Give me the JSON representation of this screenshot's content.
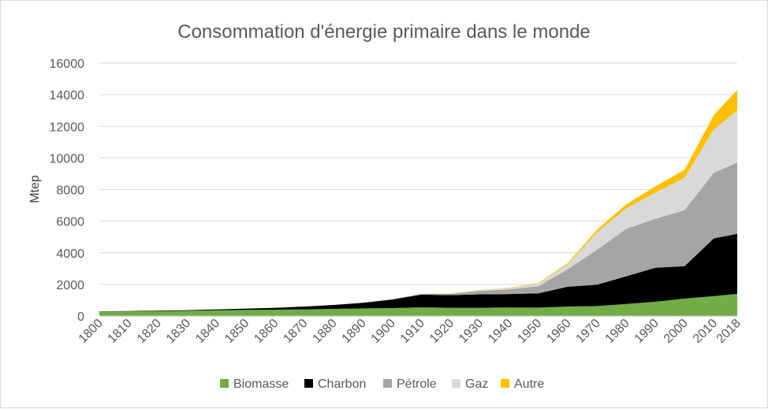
{
  "chart_data": {
    "type": "area",
    "stacked": true,
    "title": "Consommation d'énergie primaire dans le monde",
    "ylabel": "Mtep",
    "xlabel": "",
    "ylim": [
      0,
      16000
    ],
    "yticks": [
      0,
      2000,
      4000,
      6000,
      8000,
      10000,
      12000,
      14000,
      16000
    ],
    "grid": true,
    "legend_position": "bottom",
    "x": [
      1800,
      1810,
      1820,
      1830,
      1840,
      1850,
      1860,
      1870,
      1880,
      1890,
      1900,
      1910,
      1920,
      1930,
      1940,
      1950,
      1960,
      1970,
      1980,
      1990,
      2000,
      2010,
      2018
    ],
    "series": [
      {
        "name": "Biomasse",
        "color": "#70ad47",
        "values": [
          290,
          290,
          320,
          330,
          360,
          390,
          400,
          420,
          450,
          480,
          500,
          550,
          520,
          520,
          540,
          530,
          600,
          630,
          760,
          900,
          1100,
          1260,
          1400
        ]
      },
      {
        "name": "Charbon",
        "color": "#000000",
        "values": [
          10,
          20,
          30,
          40,
          60,
          80,
          120,
          180,
          250,
          350,
          540,
          800,
          800,
          850,
          850,
          900,
          1250,
          1350,
          1750,
          2150,
          2050,
          3650,
          3800
        ]
      },
      {
        "name": "Pétrole",
        "color": "#a5a5a5",
        "values": [
          0,
          0,
          0,
          0,
          0,
          0,
          0,
          0,
          0,
          0,
          20,
          40,
          80,
          210,
          290,
          450,
          1100,
          2200,
          3000,
          3100,
          3550,
          4150,
          4500
        ]
      },
      {
        "name": "Gaz",
        "color": "#d9d9d9",
        "values": [
          0,
          0,
          0,
          0,
          0,
          0,
          0,
          0,
          0,
          0,
          10,
          20,
          30,
          60,
          80,
          170,
          300,
          1100,
          1300,
          1650,
          2050,
          2750,
          3300
        ]
      },
      {
        "name": "Autre",
        "color": "#ffc000",
        "values": [
          0,
          0,
          0,
          0,
          0,
          0,
          0,
          0,
          0,
          0,
          0,
          0,
          10,
          10,
          20,
          40,
          80,
          160,
          250,
          400,
          500,
          900,
          1300
        ]
      }
    ]
  }
}
